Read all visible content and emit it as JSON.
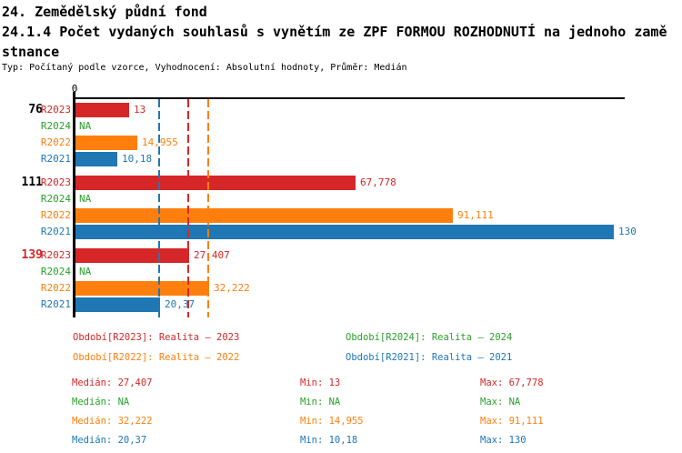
{
  "header": {
    "title_line1": "24. Zemědělský půdní fond",
    "title_line2": "24.1.4 Počet vydaných souhlasů s vynětím ze ZPF FORMOU ROZHODNUTÍ na jednoho zamě",
    "title_line3": "stnance",
    "subtitle": "Typ: Počítaný podle vzorce, Vyhodnocení: Absolutní hodnoty, Průměr: Medián"
  },
  "chart_data": {
    "type": "bar",
    "orientation": "horizontal",
    "xlim": [
      0,
      132
    ],
    "grid": false,
    "x_ticks": [
      {
        "value": 0,
        "label": "0"
      }
    ],
    "series": [
      {
        "id": "R2023",
        "color": "#d62728"
      },
      {
        "id": "R2024",
        "color": "#2ca02c"
      },
      {
        "id": "R2022",
        "color": "#ff7f0e"
      },
      {
        "id": "R2021",
        "color": "#1f77b4"
      }
    ],
    "groups": [
      {
        "label": "76",
        "label_color": "#000000",
        "values": [
          {
            "series": "R2023",
            "value": 13,
            "display": "13"
          },
          {
            "series": "R2024",
            "value": null,
            "display": "NA"
          },
          {
            "series": "R2022",
            "value": 14.955,
            "display": "14,955"
          },
          {
            "series": "R2021",
            "value": 10.18,
            "display": "10,18"
          }
        ]
      },
      {
        "label": "111",
        "label_color": "#000000",
        "values": [
          {
            "series": "R2023",
            "value": 67.778,
            "display": "67,778"
          },
          {
            "series": "R2024",
            "value": null,
            "display": "NA"
          },
          {
            "series": "R2022",
            "value": 91.111,
            "display": "91,111"
          },
          {
            "series": "R2021",
            "value": 130,
            "display": "130"
          }
        ]
      },
      {
        "label": "139",
        "label_color": "#d62728",
        "values": [
          {
            "series": "R2023",
            "value": 27.407,
            "display": "27,407"
          },
          {
            "series": "R2024",
            "value": null,
            "display": "NA"
          },
          {
            "series": "R2022",
            "value": 32.222,
            "display": "32,222"
          },
          {
            "series": "R2021",
            "value": 20.37,
            "display": "20,37"
          }
        ]
      }
    ],
    "median_lines": [
      {
        "series": "R2021",
        "value": 20.37,
        "color": "#1f77b4"
      },
      {
        "series": "R2023",
        "value": 27.407,
        "color": "#d62728"
      },
      {
        "series": "R2022",
        "value": 32.222,
        "color": "#ff7f0e"
      }
    ]
  },
  "legend": {
    "items": [
      {
        "series": "R2023",
        "label": "Období[R2023]: Realita – 2023",
        "row": 0,
        "col": 0
      },
      {
        "series": "R2024",
        "label": "Období[R2024]: Realita – 2024",
        "row": 0,
        "col": 1
      },
      {
        "series": "R2022",
        "label": "Období[R2022]: Realita – 2022",
        "row": 1,
        "col": 0
      },
      {
        "series": "R2021",
        "label": "Období[R2021]: Realita – 2021",
        "row": 1,
        "col": 1
      }
    ]
  },
  "stats": {
    "labels": {
      "median": "Medián",
      "min": "Min",
      "max": "Max"
    },
    "rows": [
      {
        "series": "R2023",
        "median": "27,407",
        "min": "13",
        "max": "67,778"
      },
      {
        "series": "R2024",
        "median": "NA",
        "min": "NA",
        "max": "NA"
      },
      {
        "series": "R2022",
        "median": "32,222",
        "min": "14,955",
        "max": "91,111"
      },
      {
        "series": "R2021",
        "median": "20,37",
        "min": "10,18",
        "max": "130"
      }
    ]
  }
}
